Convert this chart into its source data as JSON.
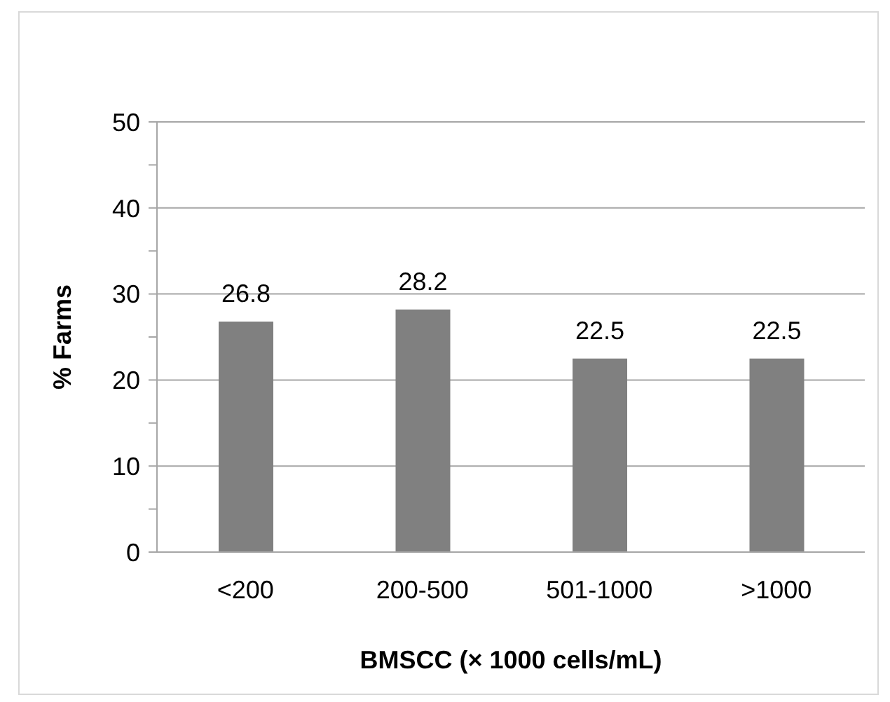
{
  "chart_data": {
    "type": "bar",
    "xlabel": "BMSCC (× 1000 cells/mL)",
    "ylabel": "% Farms",
    "categories": [
      "<200",
      "200-500",
      "501-1000",
      ">1000"
    ],
    "values": [
      26.8,
      28.2,
      22.5,
      22.5
    ],
    "color": "#808080",
    "ylim": [
      0,
      50
    ],
    "yticks": [
      0,
      {
        "value": 5,
        "label": null
      },
      10,
      {
        "value": 15,
        "label": null
      },
      20,
      {
        "value": 25,
        "label": null
      },
      30,
      {
        "value": 35,
        "label": null
      },
      40,
      {
        "value": 45,
        "label": null
      },
      50
    ],
    "grid": "y",
    "data_labels": true
  }
}
